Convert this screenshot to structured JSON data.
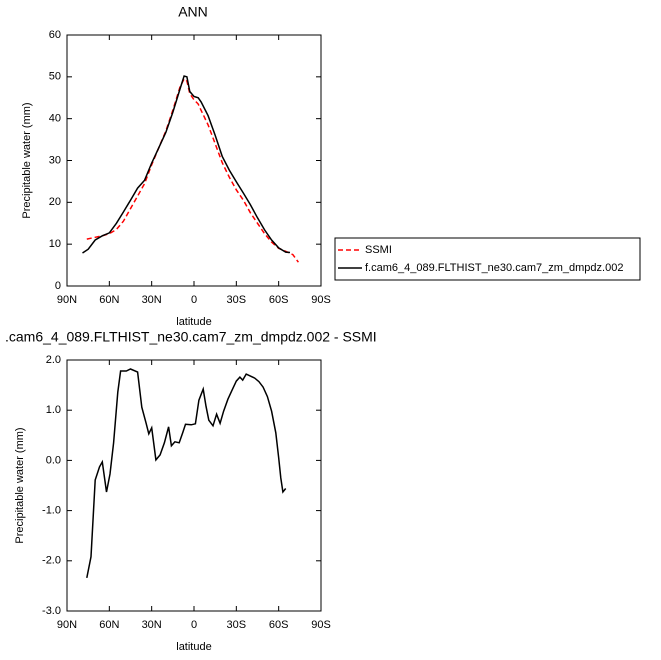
{
  "chart_data": [
    {
      "type": "line",
      "title": "ANN",
      "xlabel": "latitude",
      "ylabel": "Precipitable water (mm)",
      "xlim": [
        90,
        -90
      ],
      "xticks": [
        {
          "value": 90,
          "label": "90N"
        },
        {
          "value": 60,
          "label": "60N"
        },
        {
          "value": 30,
          "label": "30N"
        },
        0,
        {
          "value": -30,
          "label": "30S"
        },
        {
          "value": -60,
          "label": "60S"
        },
        {
          "value": -90,
          "label": "90S"
        }
      ],
      "ylim": [
        0,
        60
      ],
      "yticks": [
        0,
        10,
        20,
        30,
        40,
        50,
        60
      ],
      "legend": "right",
      "series": [
        {
          "name": "SSMI",
          "color": "#ff0000",
          "line_style": "dashed",
          "x": [
            76,
            72,
            65,
            60,
            55,
            50,
            45,
            40,
            35,
            30,
            25,
            20,
            15,
            10,
            7,
            5,
            3,
            0,
            -3,
            -5,
            -10,
            -15,
            -20,
            -25,
            -30,
            -35,
            -40,
            -45,
            -50,
            -55,
            -60,
            -65,
            -70,
            -74
          ],
          "values": [
            11.2,
            11.5,
            12,
            12.5,
            13.5,
            15.5,
            18.5,
            21.5,
            24.5,
            29,
            33,
            37,
            42,
            47.5,
            49.5,
            49,
            46,
            44.5,
            43.5,
            42,
            38.5,
            34,
            29.5,
            26,
            23,
            20.5,
            17.5,
            15,
            12.5,
            10.5,
            9,
            8.3,
            7.5,
            5.7
          ]
        },
        {
          "name": "f.cam6_4_089.FLTHIST_ne30.cam7_zm_dmpdz.002",
          "color": "#000000",
          "line_style": "solid",
          "x": [
            79,
            75,
            70,
            65,
            60,
            55,
            50,
            45,
            40,
            35,
            30,
            25,
            20,
            15,
            10,
            7,
            5,
            3,
            0,
            -3,
            -5,
            -10,
            -15,
            -20,
            -25,
            -30,
            -35,
            -40,
            -45,
            -50,
            -55,
            -60,
            -65,
            -68
          ],
          "values": [
            7.9,
            8.8,
            11,
            12,
            12.7,
            15,
            17.7,
            20.5,
            23.4,
            25.3,
            29.4,
            33,
            36.7,
            41.5,
            47,
            50.2,
            50,
            46.5,
            45.3,
            45,
            44,
            40.7,
            36,
            31,
            27.7,
            24.9,
            22.2,
            19.4,
            16.3,
            13.4,
            11,
            9.1,
            8.1,
            8
          ]
        }
      ]
    },
    {
      "type": "line",
      "title": ".cam6_4_089.FLTHIST_ne30.cam7_zm_dmpdz.002 - SSMI",
      "xlabel": "latitude",
      "ylabel": "Precipitable water (mm)",
      "xlim": [
        90,
        -90
      ],
      "xticks": [
        {
          "value": 90,
          "label": "90N"
        },
        {
          "value": 60,
          "label": "60N"
        },
        {
          "value": 30,
          "label": "30N"
        },
        0,
        {
          "value": -30,
          "label": "30S"
        },
        {
          "value": -60,
          "label": "60S"
        },
        {
          "value": -90,
          "label": "90S"
        }
      ],
      "ylim": [
        -3,
        2
      ],
      "yticks": [
        {
          "value": 2,
          "label": "2.0"
        },
        {
          "value": 1,
          "label": "1.0"
        },
        {
          "value": 0,
          "label": "0.0"
        },
        {
          "value": -1,
          "label": "-1.0"
        },
        {
          "value": -2,
          "label": "-2.0"
        },
        {
          "value": -3,
          "label": "-3.0"
        }
      ],
      "color": "#000000",
      "x": [
        76,
        73,
        70,
        67,
        65,
        62,
        59.5,
        57,
        54,
        52,
        48,
        45,
        40,
        37,
        34,
        32,
        30,
        27,
        24,
        21,
        18,
        16,
        13.5,
        10.5,
        8,
        6,
        2,
        -1,
        -3.5,
        -6.5,
        -8.5,
        -10.5,
        -13.5,
        -16,
        -18.5,
        -21,
        -24,
        -27,
        -30,
        -32.5,
        -34.5,
        -37,
        -40,
        -43,
        -46,
        -49,
        -52,
        -55,
        -58,
        -60,
        -61.5,
        -63,
        -65
      ],
      "values": [
        -2.34,
        -1.92,
        -0.39,
        -0.13,
        -0.03,
        -0.63,
        -0.27,
        0.35,
        1.36,
        1.78,
        1.78,
        1.82,
        1.76,
        1.06,
        0.75,
        0.53,
        0.65,
        0.01,
        0.11,
        0.35,
        0.67,
        0.29,
        0.37,
        0.35,
        0.55,
        0.72,
        0.71,
        0.73,
        1.2,
        1.42,
        1.08,
        0.8,
        0.69,
        0.92,
        0.74,
        0.98,
        1.22,
        1.4,
        1.58,
        1.66,
        1.6,
        1.72,
        1.68,
        1.64,
        1.57,
        1.46,
        1.27,
        0.98,
        0.55,
        0.05,
        -0.35,
        -0.63,
        -0.56
      ]
    }
  ]
}
